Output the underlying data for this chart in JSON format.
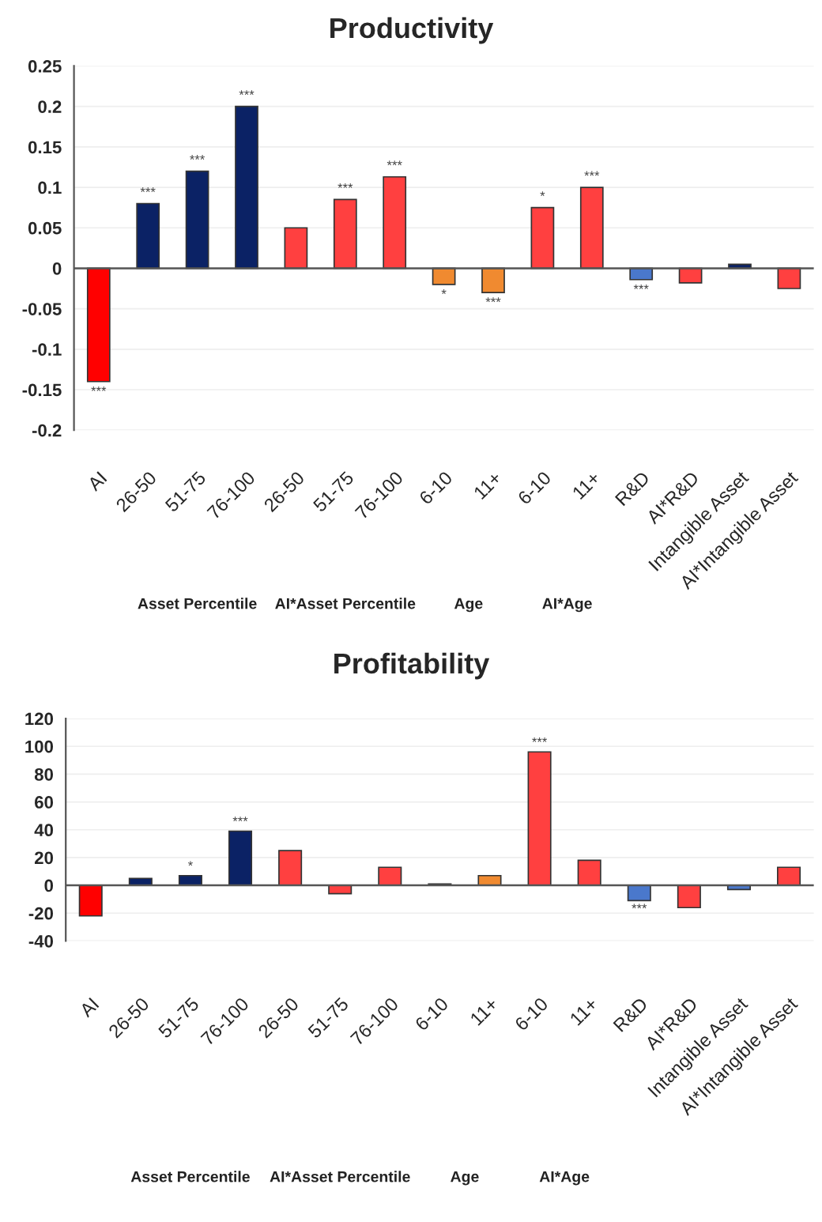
{
  "chart_data": [
    {
      "type": "bar",
      "title": "Productivity",
      "categories": [
        "AI",
        "26-50",
        "51-75",
        "76-100",
        "26-50",
        "51-75",
        "76-100",
        "6-10",
        "11+",
        "6-10",
        "11+",
        "R&D",
        "AI*R&D",
        "Intangible Asset",
        "AI*Intangible Asset"
      ],
      "values": [
        -0.14,
        0.08,
        0.12,
        0.2,
        0.05,
        0.085,
        0.113,
        -0.02,
        -0.03,
        0.075,
        0.1,
        -0.014,
        -0.018,
        0.005,
        -0.025
      ],
      "colors": [
        "#ff0000",
        "#0b2265",
        "#0b2265",
        "#0b2265",
        "#ff4040",
        "#ff4040",
        "#ff4040",
        "#f08a30",
        "#f08a30",
        "#ff4040",
        "#ff4040",
        "#4a78cc",
        "#ff4040",
        "#0b2265",
        "#ff4040"
      ],
      "value_labels": [
        "***",
        "***",
        "***",
        "***",
        null,
        "***",
        "***",
        "*",
        "***",
        "*",
        "***",
        "***",
        null,
        null,
        null
      ],
      "annotations": [
        "Asset Percentile",
        "AI*Asset Percentile",
        "Age",
        "AI*Age"
      ],
      "ylim": [
        -0.2,
        0.25
      ],
      "yticks": [
        -0.2,
        -0.15,
        -0.1,
        -0.05,
        0,
        0.05,
        0.1,
        0.15,
        0.2,
        0.25
      ],
      "grid": "y"
    },
    {
      "type": "bar",
      "title": "Profitability",
      "categories": [
        "AI",
        "26-50",
        "51-75",
        "76-100",
        "26-50",
        "51-75",
        "76-100",
        "6-10",
        "11+",
        "6-10",
        "11+",
        "R&D",
        "AI*R&D",
        "Intangible Asset",
        "AI*Intangible Asset"
      ],
      "values": [
        -22,
        5,
        7,
        39,
        25,
        -6,
        13,
        1,
        7,
        96,
        18,
        -11,
        -16,
        -3,
        13
      ],
      "colors": [
        "#ff0000",
        "#0b2265",
        "#0b2265",
        "#0b2265",
        "#ff4040",
        "#ff4040",
        "#ff4040",
        "#0b2265",
        "#f08a30",
        "#ff4040",
        "#ff4040",
        "#4a78cc",
        "#ff4040",
        "#4a78cc",
        "#ff4040"
      ],
      "value_labels": [
        null,
        null,
        "*",
        "***",
        null,
        null,
        null,
        null,
        null,
        "***",
        null,
        "***",
        null,
        null,
        null
      ],
      "annotations": [
        "Asset Percentile",
        "AI*Asset Percentile",
        "Age",
        "AI*Age"
      ],
      "ylim": [
        -40,
        120
      ],
      "yticks": [
        -40,
        -20,
        0,
        20,
        40,
        60,
        80,
        100,
        120
      ],
      "grid": "y"
    }
  ]
}
